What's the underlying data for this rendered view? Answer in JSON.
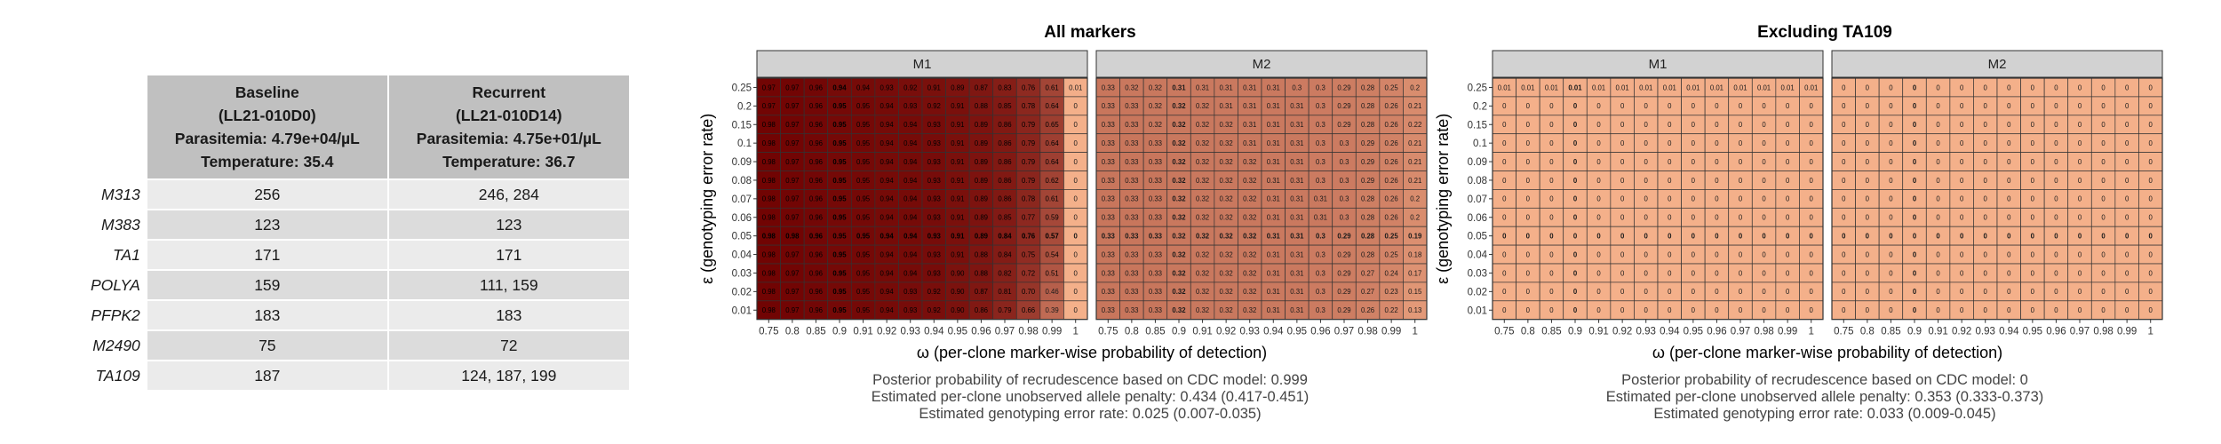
{
  "table": {
    "headers": [
      {
        "lines": [
          "Baseline",
          "(LL21-010D0)",
          "Parasitemia: 4.79e+04/µL",
          "Temperature: 35.4"
        ]
      },
      {
        "lines": [
          "Recurrent",
          "(LL21-010D14)",
          "Parasitemia: 4.75e+01/µL",
          "Temperature: 36.7"
        ]
      }
    ],
    "rows": [
      {
        "marker": "M313",
        "baseline": "256",
        "recurrent": "246, 284"
      },
      {
        "marker": "M383",
        "baseline": "123",
        "recurrent": "123"
      },
      {
        "marker": "TA1",
        "baseline": "171",
        "recurrent": "171"
      },
      {
        "marker": "POLYA",
        "baseline": "159",
        "recurrent": "111, 159"
      },
      {
        "marker": "PFPK2",
        "baseline": "183",
        "recurrent": "183"
      },
      {
        "marker": "M2490",
        "baseline": "75",
        "recurrent": "72"
      },
      {
        "marker": "TA109",
        "baseline": "187",
        "recurrent": "124, 187, 199"
      }
    ]
  },
  "colors": {
    "low": "#f4b08a",
    "high": "#6e0000",
    "strip": "#d2d2d2",
    "grid": "#333333"
  },
  "chart_data": [
    {
      "type": "heatmap",
      "title": "All markers",
      "xlabel": "ω (per-clone marker-wise probability of detection)",
      "ylabel": "ε (genotyping error rate)",
      "x": [
        "0.75",
        "0.8",
        "0.85",
        "0.9",
        "0.91",
        "0.92",
        "0.93",
        "0.94",
        "0.95",
        "0.96",
        "0.97",
        "0.98",
        "0.99",
        "1"
      ],
      "y": [
        "0.25",
        "0.2",
        "0.15",
        "0.1",
        "0.09",
        "0.08",
        "0.07",
        "0.06",
        "0.05",
        "0.04",
        "0.03",
        "0.02",
        "0.01"
      ],
      "bold_x": "0.9",
      "bold_y": "0.05",
      "panels": [
        {
          "label": "M1",
          "values": [
            [
              "0.97",
              "0.97",
              "0.96",
              "0.94",
              "0.94",
              "0.93",
              "0.92",
              "0.91",
              "0.89",
              "0.87",
              "0.83",
              "0.76",
              "0.61",
              "0.01"
            ],
            [
              "0.97",
              "0.97",
              "0.96",
              "0.95",
              "0.95",
              "0.94",
              "0.93",
              "0.92",
              "0.91",
              "0.88",
              "0.85",
              "0.78",
              "0.64",
              "0"
            ],
            [
              "0.98",
              "0.97",
              "0.96",
              "0.95",
              "0.95",
              "0.94",
              "0.94",
              "0.93",
              "0.91",
              "0.89",
              "0.86",
              "0.79",
              "0.65",
              "0"
            ],
            [
              "0.98",
              "0.97",
              "0.96",
              "0.95",
              "0.95",
              "0.94",
              "0.94",
              "0.93",
              "0.91",
              "0.89",
              "0.86",
              "0.79",
              "0.64",
              "0"
            ],
            [
              "0.98",
              "0.97",
              "0.96",
              "0.95",
              "0.95",
              "0.94",
              "0.94",
              "0.93",
              "0.91",
              "0.89",
              "0.86",
              "0.79",
              "0.64",
              "0"
            ],
            [
              "0.98",
              "0.97",
              "0.96",
              "0.95",
              "0.95",
              "0.94",
              "0.94",
              "0.93",
              "0.91",
              "0.89",
              "0.86",
              "0.79",
              "0.62",
              "0"
            ],
            [
              "0.98",
              "0.97",
              "0.96",
              "0.95",
              "0.95",
              "0.94",
              "0.94",
              "0.93",
              "0.91",
              "0.89",
              "0.86",
              "0.78",
              "0.61",
              "0"
            ],
            [
              "0.98",
              "0.97",
              "0.96",
              "0.95",
              "0.95",
              "0.94",
              "0.94",
              "0.93",
              "0.91",
              "0.89",
              "0.85",
              "0.77",
              "0.59",
              "0"
            ],
            [
              "0.98",
              "0.98",
              "0.96",
              "0.95",
              "0.95",
              "0.94",
              "0.94",
              "0.93",
              "0.91",
              "0.89",
              "0.84",
              "0.76",
              "0.57",
              "0"
            ],
            [
              "0.98",
              "0.97",
              "0.96",
              "0.95",
              "0.95",
              "0.94",
              "0.94",
              "0.93",
              "0.91",
              "0.88",
              "0.84",
              "0.75",
              "0.54",
              "0"
            ],
            [
              "0.98",
              "0.97",
              "0.96",
              "0.95",
              "0.95",
              "0.94",
              "0.94",
              "0.93",
              "0.90",
              "0.88",
              "0.82",
              "0.72",
              "0.51",
              "0"
            ],
            [
              "0.98",
              "0.97",
              "0.96",
              "0.95",
              "0.95",
              "0.94",
              "0.93",
              "0.92",
              "0.90",
              "0.87",
              "0.81",
              "0.70",
              "0.46",
              "0"
            ],
            [
              "0.98",
              "0.97",
              "0.96",
              "0.95",
              "0.95",
              "0.94",
              "0.93",
              "0.92",
              "0.90",
              "0.86",
              "0.79",
              "0.66",
              "0.39",
              "0"
            ]
          ]
        },
        {
          "label": "M2",
          "values": [
            [
              "0.33",
              "0.32",
              "0.32",
              "0.31",
              "0.31",
              "0.31",
              "0.31",
              "0.31",
              "0.3",
              "0.3",
              "0.29",
              "0.28",
              "0.25",
              "0.2"
            ],
            [
              "0.33",
              "0.33",
              "0.32",
              "0.32",
              "0.32",
              "0.31",
              "0.31",
              "0.31",
              "0.31",
              "0.3",
              "0.29",
              "0.28",
              "0.26",
              "0.21"
            ],
            [
              "0.33",
              "0.33",
              "0.32",
              "0.32",
              "0.32",
              "0.32",
              "0.31",
              "0.31",
              "0.31",
              "0.3",
              "0.29",
              "0.28",
              "0.26",
              "0.22"
            ],
            [
              "0.33",
              "0.33",
              "0.33",
              "0.32",
              "0.32",
              "0.32",
              "0.31",
              "0.31",
              "0.31",
              "0.3",
              "0.3",
              "0.29",
              "0.26",
              "0.21"
            ],
            [
              "0.33",
              "0.33",
              "0.33",
              "0.32",
              "0.32",
              "0.32",
              "0.32",
              "0.31",
              "0.31",
              "0.3",
              "0.3",
              "0.29",
              "0.26",
              "0.21"
            ],
            [
              "0.33",
              "0.33",
              "0.33",
              "0.32",
              "0.32",
              "0.32",
              "0.32",
              "0.31",
              "0.31",
              "0.3",
              "0.3",
              "0.29",
              "0.26",
              "0.21"
            ],
            [
              "0.33",
              "0.33",
              "0.33",
              "0.32",
              "0.32",
              "0.32",
              "0.32",
              "0.31",
              "0.31",
              "0.31",
              "0.3",
              "0.28",
              "0.26",
              "0.2"
            ],
            [
              "0.33",
              "0.33",
              "0.33",
              "0.32",
              "0.32",
              "0.32",
              "0.32",
              "0.31",
              "0.31",
              "0.31",
              "0.3",
              "0.28",
              "0.26",
              "0.2"
            ],
            [
              "0.33",
              "0.33",
              "0.33",
              "0.32",
              "0.32",
              "0.32",
              "0.32",
              "0.31",
              "0.31",
              "0.3",
              "0.29",
              "0.28",
              "0.25",
              "0.19"
            ],
            [
              "0.33",
              "0.33",
              "0.33",
              "0.32",
              "0.32",
              "0.32",
              "0.32",
              "0.31",
              "0.31",
              "0.3",
              "0.29",
              "0.28",
              "0.25",
              "0.18"
            ],
            [
              "0.33",
              "0.33",
              "0.33",
              "0.32",
              "0.32",
              "0.32",
              "0.32",
              "0.31",
              "0.31",
              "0.3",
              "0.29",
              "0.27",
              "0.24",
              "0.17"
            ],
            [
              "0.33",
              "0.33",
              "0.33",
              "0.32",
              "0.32",
              "0.32",
              "0.32",
              "0.31",
              "0.31",
              "0.3",
              "0.29",
              "0.27",
              "0.23",
              "0.15"
            ],
            [
              "0.33",
              "0.33",
              "0.33",
              "0.32",
              "0.32",
              "0.32",
              "0.32",
              "0.31",
              "0.31",
              "0.3",
              "0.29",
              "0.26",
              "0.22",
              "0.13"
            ]
          ]
        }
      ],
      "captions": [
        "Posterior probability of recrudescence based on CDC model: 0.999",
        "Estimated per-clone unobserved allele penalty: 0.434 (0.417-0.451)",
        "Estimated genotyping error rate: 0.025 (0.007-0.035)"
      ]
    },
    {
      "type": "heatmap",
      "title": "Excluding TA109",
      "xlabel": "ω (per-clone marker-wise probability of detection)",
      "ylabel": "ε (genotyping error rate)",
      "x": [
        "0.75",
        "0.8",
        "0.85",
        "0.9",
        "0.91",
        "0.92",
        "0.93",
        "0.94",
        "0.95",
        "0.96",
        "0.97",
        "0.98",
        "0.99",
        "1"
      ],
      "y": [
        "0.25",
        "0.2",
        "0.15",
        "0.1",
        "0.09",
        "0.08",
        "0.07",
        "0.06",
        "0.05",
        "0.04",
        "0.03",
        "0.02",
        "0.01"
      ],
      "bold_x": "0.9",
      "bold_y": "0.05",
      "panels": [
        {
          "label": "M1",
          "values": [
            [
              "0.01",
              "0.01",
              "0.01",
              "0.01",
              "0.01",
              "0.01",
              "0.01",
              "0.01",
              "0.01",
              "0.01",
              "0.01",
              "0.01",
              "0.01",
              "0.01"
            ],
            [
              "0",
              "0",
              "0",
              "0",
              "0",
              "0",
              "0",
              "0",
              "0",
              "0",
              "0",
              "0",
              "0",
              "0"
            ],
            [
              "0",
              "0",
              "0",
              "0",
              "0",
              "0",
              "0",
              "0",
              "0",
              "0",
              "0",
              "0",
              "0",
              "0"
            ],
            [
              "0",
              "0",
              "0",
              "0",
              "0",
              "0",
              "0",
              "0",
              "0",
              "0",
              "0",
              "0",
              "0",
              "0"
            ],
            [
              "0",
              "0",
              "0",
              "0",
              "0",
              "0",
              "0",
              "0",
              "0",
              "0",
              "0",
              "0",
              "0",
              "0"
            ],
            [
              "0",
              "0",
              "0",
              "0",
              "0",
              "0",
              "0",
              "0",
              "0",
              "0",
              "0",
              "0",
              "0",
              "0"
            ],
            [
              "0",
              "0",
              "0",
              "0",
              "0",
              "0",
              "0",
              "0",
              "0",
              "0",
              "0",
              "0",
              "0",
              "0"
            ],
            [
              "0",
              "0",
              "0",
              "0",
              "0",
              "0",
              "0",
              "0",
              "0",
              "0",
              "0",
              "0",
              "0",
              "0"
            ],
            [
              "0",
              "0",
              "0",
              "0",
              "0",
              "0",
              "0",
              "0",
              "0",
              "0",
              "0",
              "0",
              "0",
              "0"
            ],
            [
              "0",
              "0",
              "0",
              "0",
              "0",
              "0",
              "0",
              "0",
              "0",
              "0",
              "0",
              "0",
              "0",
              "0"
            ],
            [
              "0",
              "0",
              "0",
              "0",
              "0",
              "0",
              "0",
              "0",
              "0",
              "0",
              "0",
              "0",
              "0",
              "0"
            ],
            [
              "0",
              "0",
              "0",
              "0",
              "0",
              "0",
              "0",
              "0",
              "0",
              "0",
              "0",
              "0",
              "0",
              "0"
            ],
            [
              "0",
              "0",
              "0",
              "0",
              "0",
              "0",
              "0",
              "0",
              "0",
              "0",
              "0",
              "0",
              "0",
              "0"
            ]
          ]
        },
        {
          "label": "M2",
          "values": [
            [
              "0",
              "0",
              "0",
              "0",
              "0",
              "0",
              "0",
              "0",
              "0",
              "0",
              "0",
              "0",
              "0",
              "0"
            ],
            [
              "0",
              "0",
              "0",
              "0",
              "0",
              "0",
              "0",
              "0",
              "0",
              "0",
              "0",
              "0",
              "0",
              "0"
            ],
            [
              "0",
              "0",
              "0",
              "0",
              "0",
              "0",
              "0",
              "0",
              "0",
              "0",
              "0",
              "0",
              "0",
              "0"
            ],
            [
              "0",
              "0",
              "0",
              "0",
              "0",
              "0",
              "0",
              "0",
              "0",
              "0",
              "0",
              "0",
              "0",
              "0"
            ],
            [
              "0",
              "0",
              "0",
              "0",
              "0",
              "0",
              "0",
              "0",
              "0",
              "0",
              "0",
              "0",
              "0",
              "0"
            ],
            [
              "0",
              "0",
              "0",
              "0",
              "0",
              "0",
              "0",
              "0",
              "0",
              "0",
              "0",
              "0",
              "0",
              "0"
            ],
            [
              "0",
              "0",
              "0",
              "0",
              "0",
              "0",
              "0",
              "0",
              "0",
              "0",
              "0",
              "0",
              "0",
              "0"
            ],
            [
              "0",
              "0",
              "0",
              "0",
              "0",
              "0",
              "0",
              "0",
              "0",
              "0",
              "0",
              "0",
              "0",
              "0"
            ],
            [
              "0",
              "0",
              "0",
              "0",
              "0",
              "0",
              "0",
              "0",
              "0",
              "0",
              "0",
              "0",
              "0",
              "0"
            ],
            [
              "0",
              "0",
              "0",
              "0",
              "0",
              "0",
              "0",
              "0",
              "0",
              "0",
              "0",
              "0",
              "0",
              "0"
            ],
            [
              "0",
              "0",
              "0",
              "0",
              "0",
              "0",
              "0",
              "0",
              "0",
              "0",
              "0",
              "0",
              "0",
              "0"
            ],
            [
              "0",
              "0",
              "0",
              "0",
              "0",
              "0",
              "0",
              "0",
              "0",
              "0",
              "0",
              "0",
              "0",
              "0"
            ],
            [
              "0",
              "0",
              "0",
              "0",
              "0",
              "0",
              "0",
              "0",
              "0",
              "0",
              "0",
              "0",
              "0",
              "0"
            ]
          ]
        }
      ],
      "captions": [
        "Posterior probability of recrudescence based on CDC model: 0",
        "Estimated per-clone unobserved allele penalty: 0.353 (0.333-0.373)",
        "Estimated genotyping error rate: 0.033 (0.009-0.045)"
      ]
    }
  ]
}
